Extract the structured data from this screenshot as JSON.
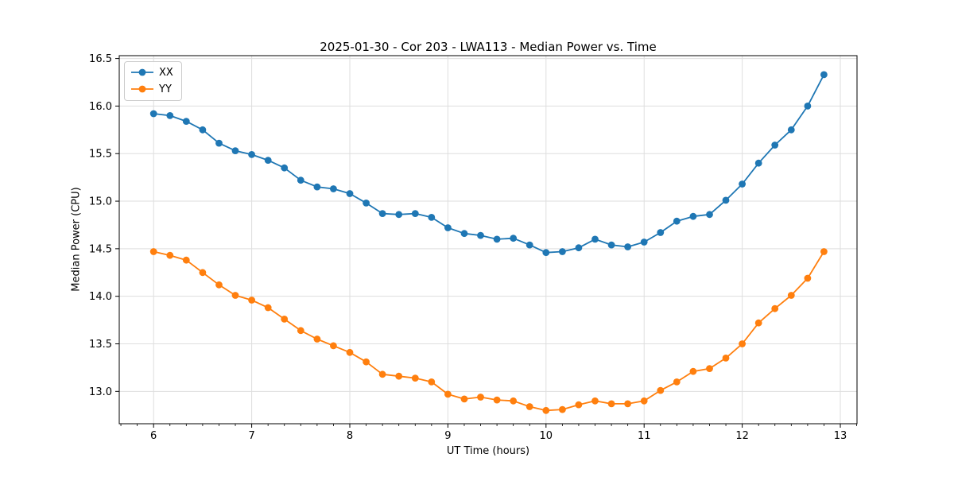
{
  "chart_data": {
    "type": "line",
    "title": "2025-01-30 - Cor 203 - LWA113 - Median Power vs. Time",
    "xlabel": "UT Time (hours)",
    "ylabel": "Median Power (CPU)",
    "xlim": [
      5.65,
      13.17
    ],
    "ylim": [
      12.66,
      16.53
    ],
    "xticks": [
      6,
      7,
      8,
      9,
      10,
      11,
      12,
      13
    ],
    "yticks": [
      13.0,
      13.5,
      14.0,
      14.5,
      15.0,
      15.5,
      16.0,
      16.5
    ],
    "minor_xtick_interval": 0.16667,
    "grid": true,
    "legend_position": "upper left",
    "x": [
      6.0,
      6.167,
      6.333,
      6.5,
      6.667,
      6.833,
      7.0,
      7.167,
      7.333,
      7.5,
      7.667,
      7.833,
      8.0,
      8.167,
      8.333,
      8.5,
      8.667,
      8.833,
      9.0,
      9.167,
      9.333,
      9.5,
      9.667,
      9.833,
      10.0,
      10.167,
      10.333,
      10.5,
      10.667,
      10.833,
      11.0,
      11.167,
      11.333,
      11.5,
      11.667,
      11.833,
      12.0,
      12.167,
      12.333,
      12.5,
      12.667,
      12.833
    ],
    "series": [
      {
        "name": "XX",
        "color": "#1f77b4",
        "marker": "circle",
        "values": [
          15.92,
          15.9,
          15.84,
          15.75,
          15.61,
          15.53,
          15.49,
          15.43,
          15.35,
          15.22,
          15.15,
          15.13,
          15.08,
          14.98,
          14.87,
          14.86,
          14.87,
          14.83,
          14.72,
          14.66,
          14.64,
          14.6,
          14.61,
          14.54,
          14.46,
          14.47,
          14.51,
          14.6,
          14.54,
          14.52,
          14.57,
          14.67,
          14.79,
          14.84,
          14.86,
          15.01,
          15.18,
          15.4,
          15.59,
          15.75,
          16.0,
          16.33
        ]
      },
      {
        "name": "YY",
        "color": "#ff7f0e",
        "marker": "circle",
        "values": [
          14.47,
          14.43,
          14.38,
          14.25,
          14.12,
          14.01,
          13.96,
          13.88,
          13.76,
          13.64,
          13.55,
          13.48,
          13.41,
          13.31,
          13.18,
          13.16,
          13.14,
          13.1,
          12.97,
          12.92,
          12.94,
          12.91,
          12.9,
          12.84,
          12.8,
          12.81,
          12.86,
          12.9,
          12.87,
          12.87,
          12.9,
          13.01,
          13.1,
          13.21,
          13.24,
          13.35,
          13.5,
          13.72,
          13.87,
          14.01,
          14.19,
          14.47
        ]
      }
    ]
  }
}
